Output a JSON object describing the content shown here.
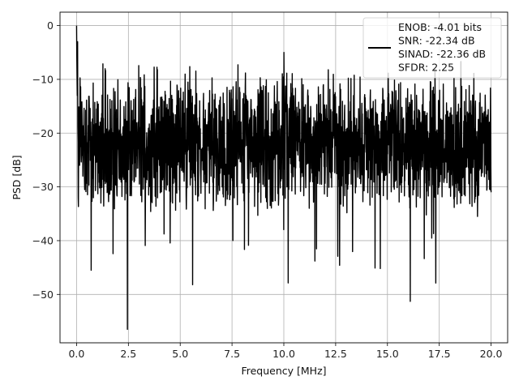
{
  "chart_data": {
    "type": "line",
    "title": "",
    "xlabel": "Frequency [MHz]",
    "ylabel": "PSD [dB]",
    "xlim": [
      -0.8,
      20.8
    ],
    "ylim": [
      -59,
      2.5
    ],
    "xticks": [
      0,
      2.5,
      5,
      7.5,
      10,
      12.5,
      15,
      17.5,
      20
    ],
    "xtick_labels": [
      "0.0",
      "2.5",
      "5.0",
      "7.5",
      "10.0",
      "12.5",
      "15.0",
      "17.5",
      "20.0"
    ],
    "yticks": [
      0,
      -10,
      -20,
      -30,
      -40,
      -50
    ],
    "ytick_labels": [
      "0",
      "−10",
      "−20",
      "−30",
      "−40",
      "−50"
    ],
    "grid": true,
    "legend_position": "top-right",
    "line_color": "#000000",
    "series": [
      {
        "name": "",
        "legend_text": [
          "ENOB: -4.01 bits",
          "SNR: -22.34 dB",
          "SINAD: -22.36 dB",
          "SFDR: 2.25"
        ],
        "points_count": 2048,
        "x_range": [
          0,
          20
        ],
        "level_db": -17,
        "max_db": 0,
        "min_db": -56.5,
        "notable_points": [
          {
            "x": 0.0,
            "y": 0.0
          },
          {
            "x": 0.05,
            "y": -3
          },
          {
            "x": 0.7,
            "y": -45.5
          },
          {
            "x": 2.45,
            "y": -56.5
          },
          {
            "x": 5.6,
            "y": -48.2
          },
          {
            "x": 11.5,
            "y": -43.8
          },
          {
            "x": 14.4,
            "y": -45.1
          },
          {
            "x": 16.1,
            "y": -51.3
          },
          {
            "x": 10.0,
            "y": -5.0
          },
          {
            "x": 20.0,
            "y": -31.0
          }
        ]
      }
    ]
  }
}
